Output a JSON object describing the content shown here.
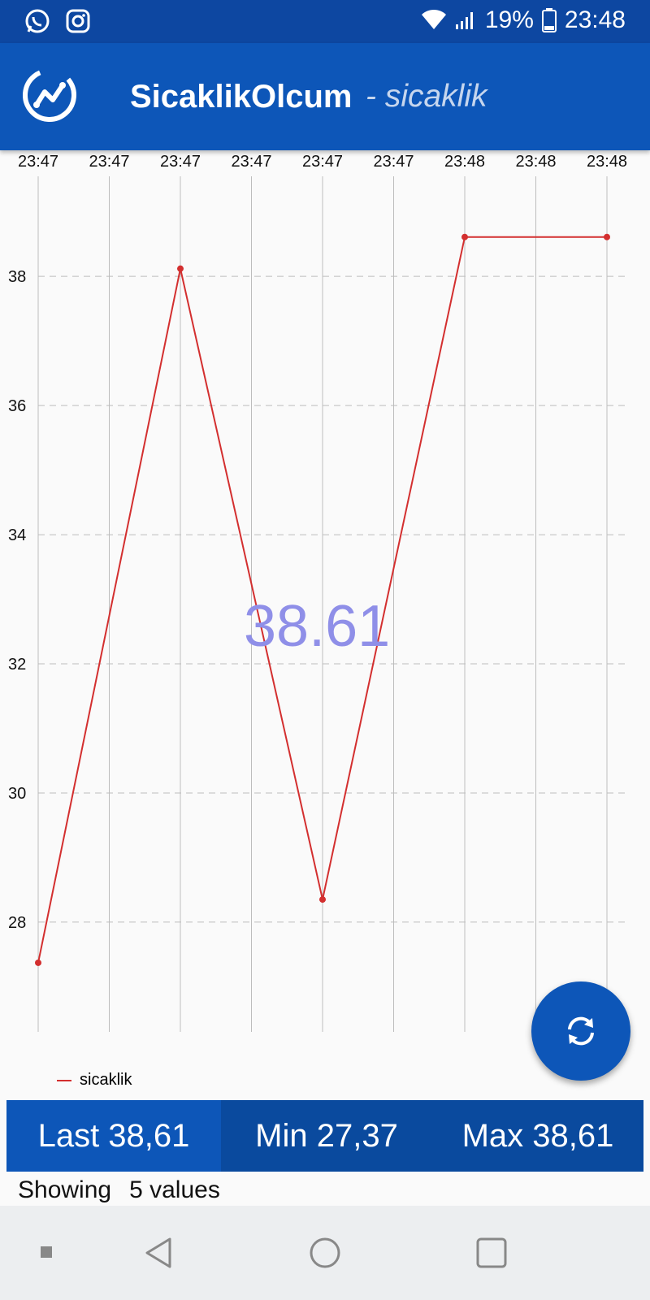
{
  "status_bar": {
    "battery": "19%",
    "time": "23:48",
    "icons": [
      "whatsapp-icon",
      "instagram-icon",
      "wifi-icon",
      "signal-icon",
      "battery-icon"
    ]
  },
  "app_bar": {
    "title": "SicaklikOlcum",
    "subtitle": "- sicaklik",
    "color": "#0d56b8"
  },
  "chart_data": {
    "type": "line",
    "x": [
      "23:47",
      "23:47",
      "23:47",
      "23:47",
      "23:47",
      "23:47",
      "23:48",
      "23:48",
      "23:48"
    ],
    "series": [
      {
        "name": "sicaklik",
        "color": "#d32f2f",
        "points": [
          [
            0,
            27.37
          ],
          [
            2,
            38.12
          ],
          [
            4,
            28.35
          ],
          [
            6,
            38.61
          ],
          [
            8,
            38.61
          ]
        ]
      }
    ],
    "yticks": [
      28,
      30,
      32,
      34,
      36,
      38
    ],
    "ylim": [
      26.3,
      39.55
    ],
    "grid": true,
    "legend_position": "bottom-left"
  },
  "center_value": "38.61",
  "stats": {
    "last": "Last 38,61",
    "min": "Min 27,37",
    "max": "Max 38,61"
  },
  "showing": {
    "label": "Showing",
    "value": "5 values"
  },
  "nav": {
    "icons": [
      "recent-apps-icon",
      "back-icon",
      "home-icon",
      "overview-icon"
    ]
  }
}
